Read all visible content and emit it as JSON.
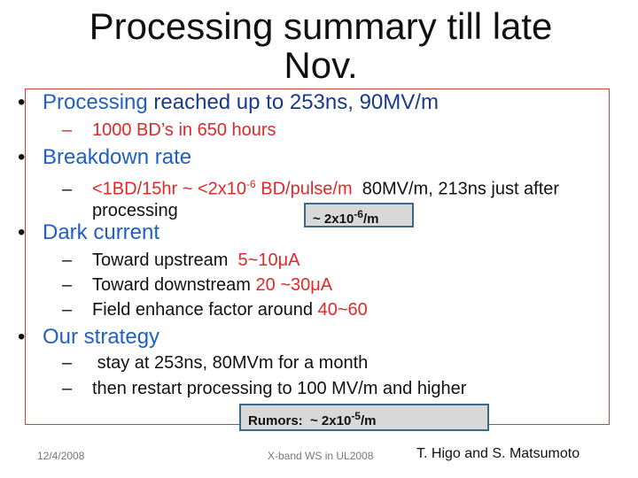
{
  "title": "Processing summary till late Nov.",
  "items": [
    {
      "head": [
        "Processing",
        "reached up to 253ns, 90MV/m"
      ],
      "subs": [
        [
          "1000 BD’s in 650 hours"
        ]
      ]
    },
    {
      "head": [
        "Breakdown rate"
      ],
      "subs": [
        [
          "<1BD/15hr ~ <2x10",
          "-6",
          "BD/pulse/m",
          "80MV/m, 213ns just after processing"
        ]
      ]
    },
    {
      "head": [
        "Dark current"
      ],
      "subs": [
        [
          "Toward upstream",
          "5~10μA"
        ],
        [
          "Toward downstream",
          "20 ~30μA"
        ],
        [
          "Field enhance factor around",
          "40~60"
        ]
      ]
    },
    {
      "head": [
        "Our strategy"
      ],
      "subs": [
        [
          "stay at 253ns, 80MVm for a month"
        ],
        [
          "then restart processing to 100 MV/m and higher"
        ]
      ]
    }
  ],
  "boxes": [
    [
      "~ 2x10",
      "-6",
      "/m"
    ],
    [
      "Rumors:  ~ 2x10",
      "-5",
      "/m"
    ]
  ],
  "footer": {
    "date": "12/4/2008",
    "event": "X-band WS in UL2008",
    "authors": "T. Higo and S. Matsumoto"
  }
}
